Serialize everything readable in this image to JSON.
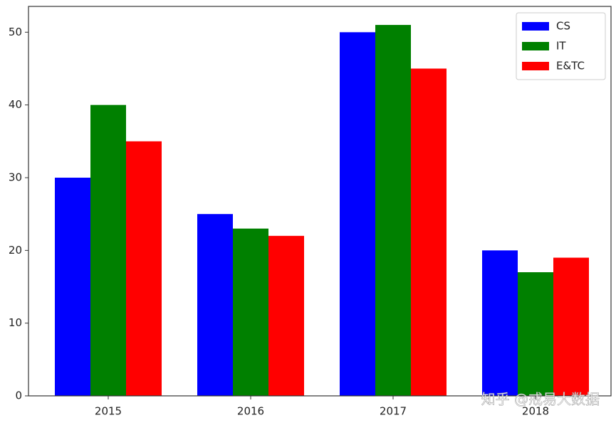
{
  "chart_data": {
    "type": "bar",
    "categories": [
      "2015",
      "2016",
      "2017",
      "2018"
    ],
    "series": [
      {
        "name": "CS",
        "color": "#0000ff",
        "values": [
          30,
          25,
          50,
          20
        ]
      },
      {
        "name": "IT",
        "color": "#008000",
        "values": [
          40,
          23,
          51,
          17
        ]
      },
      {
        "name": "E&TC",
        "color": "#ff0000",
        "values": [
          35,
          22,
          45,
          19
        ]
      }
    ],
    "ylim": [
      0,
      53.55
    ],
    "yticks": [
      0,
      10,
      20,
      30,
      40,
      50
    ],
    "grid": false,
    "legend": "upper-right",
    "watermark": "知乎 @戒易大数据"
  }
}
